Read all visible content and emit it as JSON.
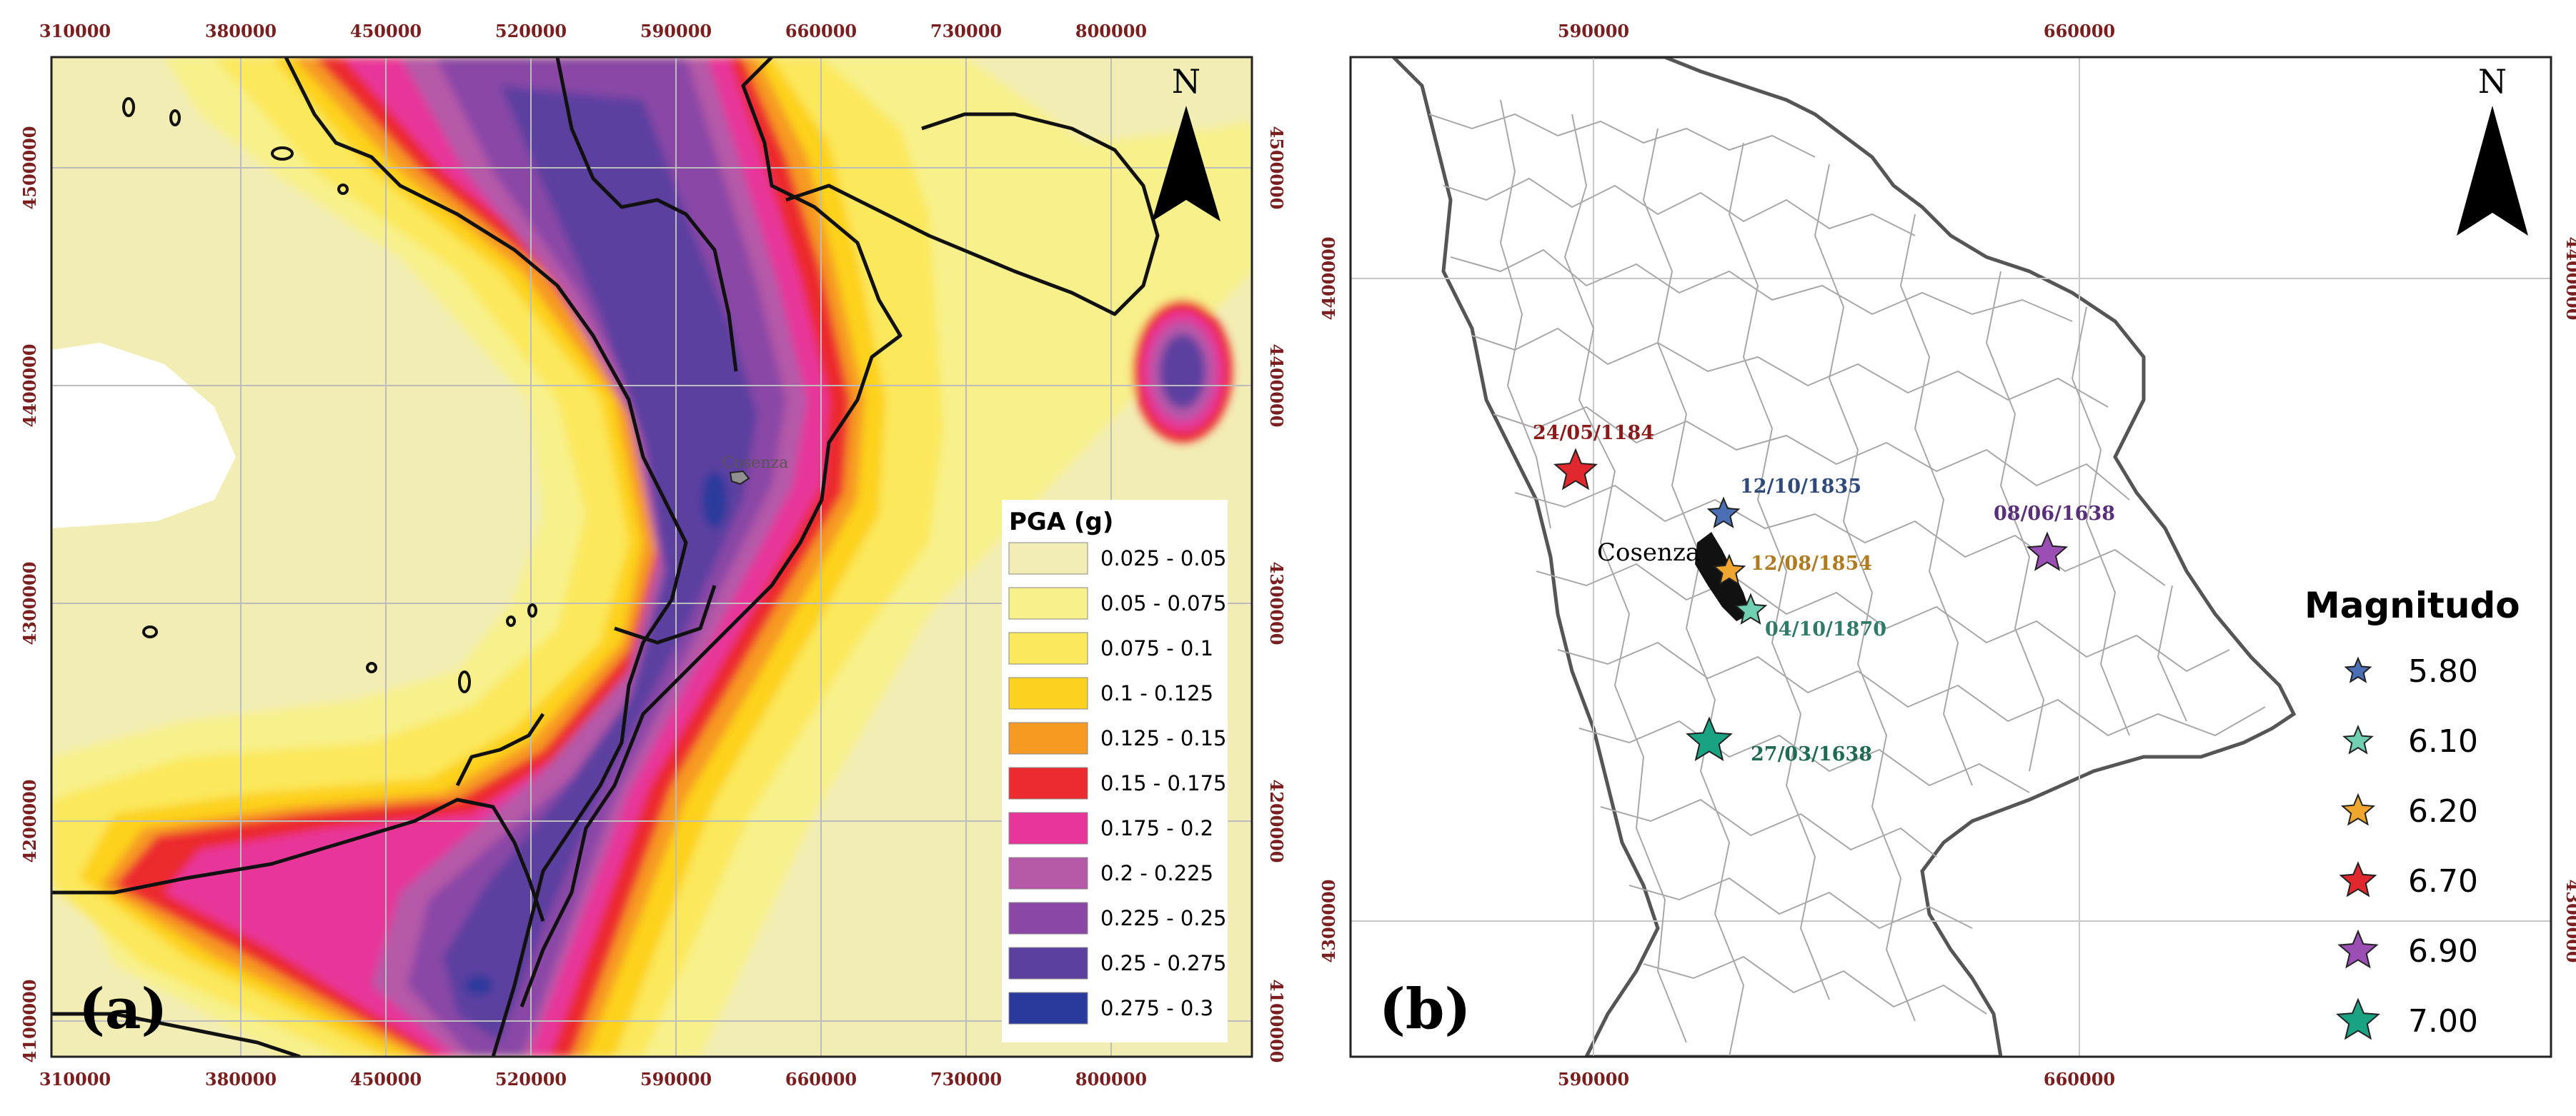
{
  "panel_a": {
    "letter": "(a)",
    "north": "N",
    "city_label": "Cosenza",
    "x_ticks": [
      "310000",
      "380000",
      "450000",
      "520000",
      "590000",
      "660000",
      "730000",
      "800000"
    ],
    "y_ticks": [
      "4500000",
      "4400000",
      "4300000",
      "4200000",
      "4100000"
    ],
    "legend": {
      "title": "PGA (g)",
      "classes": [
        {
          "label": "0.025 - 0.05",
          "color": "#f2edb4"
        },
        {
          "label": "0.05 - 0.075",
          "color": "#f8f08a"
        },
        {
          "label": "0.075 - 0.1",
          "color": "#fbe85c"
        },
        {
          "label": "0.1 - 0.125",
          "color": "#fdd21f"
        },
        {
          "label": "0.125 - 0.15",
          "color": "#f79a24"
        },
        {
          "label": "0.15 - 0.175",
          "color": "#ec2a2f"
        },
        {
          "label": "0.175 - 0.2",
          "color": "#e8359a"
        },
        {
          "label": "0.2 - 0.225",
          "color": "#b558a8"
        },
        {
          "label": "0.225 - 0.25",
          "color": "#8a47a6"
        },
        {
          "label": "0.25 - 0.275",
          "color": "#5c40a0"
        },
        {
          "label": "0.275 - 0.3",
          "color": "#2a3a9c"
        }
      ]
    }
  },
  "panel_b": {
    "letter": "(b)",
    "north": "N",
    "city_label": "Cosenza",
    "x_ticks": [
      "590000",
      "660000"
    ],
    "y_ticks": [
      "4400000",
      "4300000"
    ],
    "earthquakes": [
      {
        "date": "24/05/1184",
        "magnitude": "6.70",
        "color": "#e0282e",
        "label_color": "#8b1a1a"
      },
      {
        "date": "12/10/1835",
        "magnitude": "5.80",
        "color": "#4a6fb5",
        "label_color": "#2f4a7a"
      },
      {
        "date": "08/06/1638",
        "magnitude": "6.90",
        "color": "#9b4fb5",
        "label_color": "#5a2f7a"
      },
      {
        "date": "12/08/1854",
        "magnitude": "6.20",
        "color": "#f0a62e",
        "label_color": "#b07a20"
      },
      {
        "date": "04/10/1870",
        "magnitude": "6.10",
        "color": "#6fcfb0",
        "label_color": "#2f7a6a"
      },
      {
        "date": "27/03/1638",
        "magnitude": "7.00",
        "color": "#1aa383",
        "label_color": "#1f6a55"
      }
    ],
    "legend": {
      "title": "Magnitudo",
      "items": [
        {
          "label": "5.80",
          "color": "#4a6fb5"
        },
        {
          "label": "6.10",
          "color": "#6fcfb0"
        },
        {
          "label": "6.20",
          "color": "#f0a62e"
        },
        {
          "label": "6.70",
          "color": "#e0282e"
        },
        {
          "label": "6.90",
          "color": "#9b4fb5"
        },
        {
          "label": "7.00",
          "color": "#1aa383"
        }
      ]
    }
  }
}
